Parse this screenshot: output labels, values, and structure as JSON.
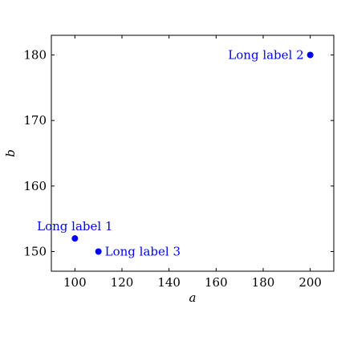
{
  "chart_data": {
    "type": "scatter",
    "title": "",
    "xlabel": "a",
    "ylabel": "b",
    "xlim": [
      90,
      210
    ],
    "ylim": [
      147,
      183
    ],
    "xticks": [
      100,
      120,
      140,
      160,
      180,
      200
    ],
    "yticks": [
      150,
      160,
      170,
      180
    ],
    "grid": false,
    "legend": "none",
    "series": [
      {
        "color": "#0000ff",
        "points": [
          {
            "x": 100,
            "y": 152,
            "label": "Long label 1",
            "label_position": "above"
          },
          {
            "x": 200,
            "y": 180,
            "label": "Long label 2",
            "label_position": "left"
          },
          {
            "x": 110,
            "y": 150,
            "label": "Long label 3",
            "label_position": "right"
          }
        ]
      }
    ]
  }
}
